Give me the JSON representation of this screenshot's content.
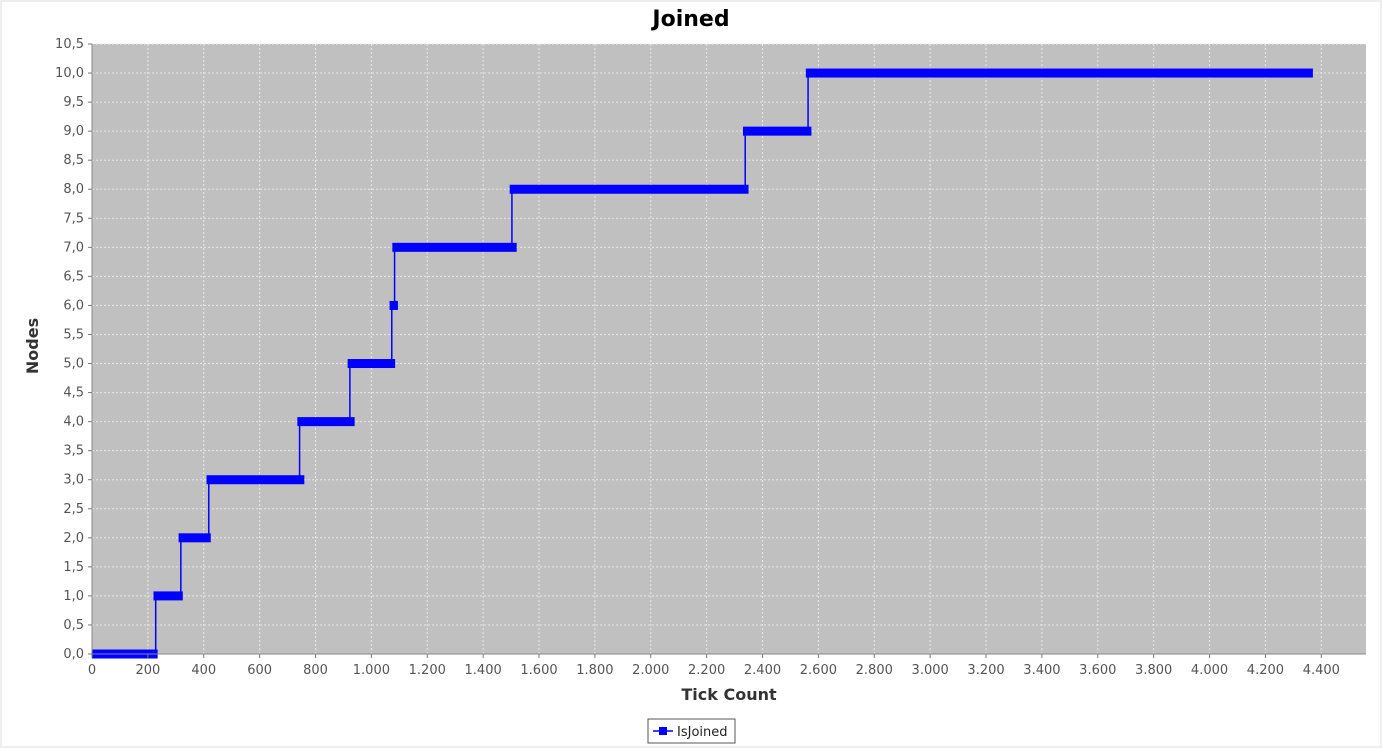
{
  "chart_data": {
    "type": "line",
    "title": "Joined",
    "xlabel": "Tick Count",
    "ylabel": "Nodes",
    "xlim": [
      0,
      4560
    ],
    "ylim": [
      0,
      10.5
    ],
    "x_ticks": [
      0,
      200,
      400,
      600,
      800,
      1000,
      1200,
      1400,
      1600,
      1800,
      2000,
      2200,
      2400,
      2600,
      2800,
      3000,
      3200,
      3400,
      3600,
      3800,
      4000,
      4200,
      4400
    ],
    "x_tick_labels": [
      "0",
      "200",
      "400",
      "600",
      "800",
      "1.000",
      "1.200",
      "1.400",
      "1.600",
      "1.800",
      "2.000",
      "2.200",
      "2.400",
      "2.600",
      "2.800",
      "3.000",
      "3.200",
      "3.400",
      "3.600",
      "3.800",
      "4.000",
      "4.200",
      "4.400"
    ],
    "y_ticks": [
      0,
      0.5,
      1,
      1.5,
      2,
      2.5,
      3,
      3.5,
      4,
      4.5,
      5,
      5.5,
      6,
      6.5,
      7,
      7.5,
      8,
      8.5,
      9,
      9.5,
      10,
      10.5
    ],
    "y_tick_labels": [
      "0,0",
      "0,5",
      "1,0",
      "1,5",
      "2,0",
      "2,5",
      "3,0",
      "3,5",
      "4,0",
      "4,5",
      "5,0",
      "5,5",
      "6,0",
      "6,5",
      "7,0",
      "7,5",
      "8,0",
      "8,5",
      "9,0",
      "9,5",
      "10,0",
      "10,5"
    ],
    "grid": true,
    "legend_position": "bottom-center",
    "colors": {
      "series": "#0000ff",
      "plot_background": "#c0c0c0",
      "grid": "#e8e8e8"
    },
    "series": [
      {
        "name": "IsJoined",
        "segments": [
          {
            "x_start": 0,
            "x_end": 235,
            "y": 0
          },
          {
            "x_start": 220,
            "x_end": 325,
            "y": 1
          },
          {
            "x_start": 310,
            "x_end": 425,
            "y": 2
          },
          {
            "x_start": 410,
            "x_end": 760,
            "y": 3
          },
          {
            "x_start": 735,
            "x_end": 940,
            "y": 4
          },
          {
            "x_start": 915,
            "x_end": 1085,
            "y": 5
          },
          {
            "x_start": 1065,
            "x_end": 1095,
            "y": 6
          },
          {
            "x_start": 1075,
            "x_end": 1520,
            "y": 7
          },
          {
            "x_start": 1495,
            "x_end": 2350,
            "y": 8
          },
          {
            "x_start": 2330,
            "x_end": 2575,
            "y": 9
          },
          {
            "x_start": 2555,
            "x_end": 4370,
            "y": 10
          }
        ]
      }
    ]
  }
}
